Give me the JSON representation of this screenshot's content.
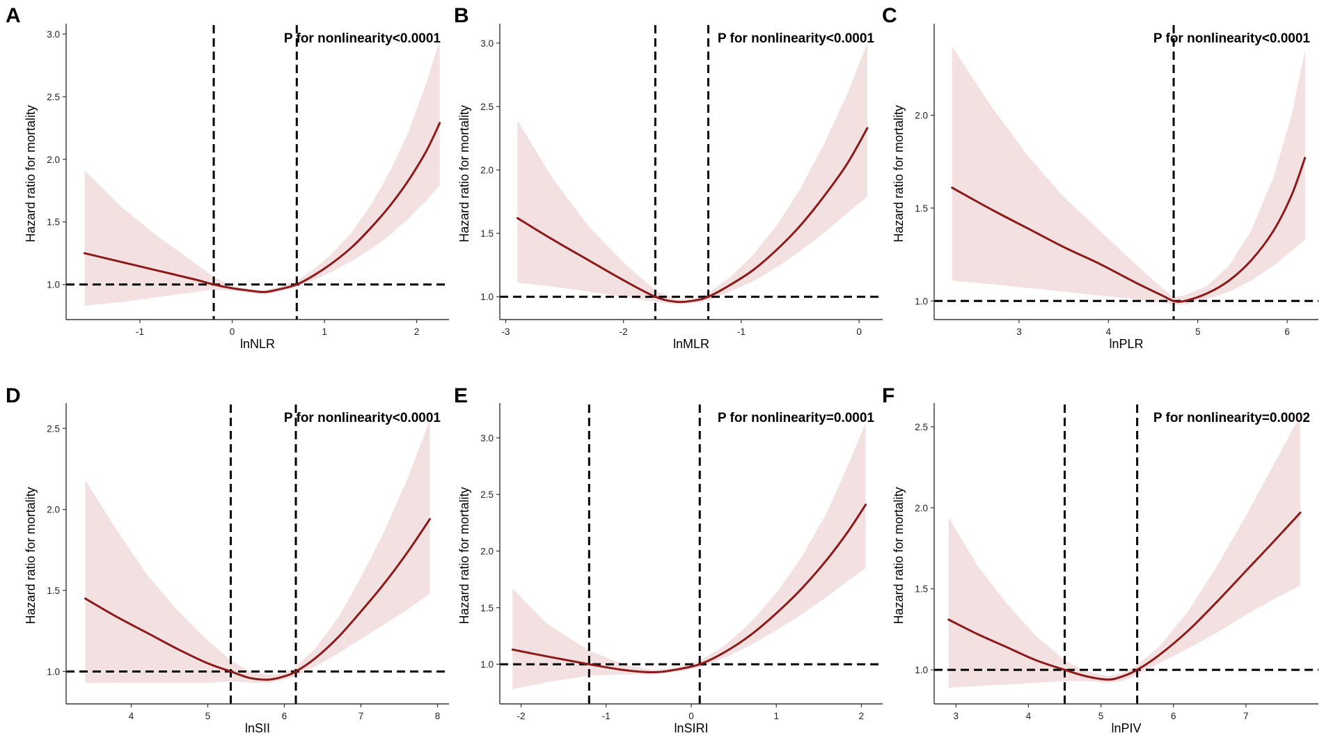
{
  "colors": {
    "line": "#8b1a1a",
    "band": "#f3e0e1",
    "reference": "#000000"
  },
  "chart_data": [
    {
      "panel": "A",
      "type": "line",
      "title": "",
      "xlabel": "lnNLR",
      "ylabel": "Hazard ratio for mortality",
      "annotation": "P for nonlinearity<0.0001",
      "xlim": [
        -1.8,
        2.35
      ],
      "ylim": [
        0.72,
        3.05
      ],
      "xticks": [
        -1,
        0,
        1,
        2
      ],
      "yticks": [
        1.0,
        1.5,
        2.0,
        2.5,
        3.0
      ],
      "hline": 1.0,
      "vlines": [
        -0.2,
        0.7
      ],
      "x": [
        -1.6,
        -1.2,
        -0.8,
        -0.4,
        -0.2,
        0.0,
        0.2,
        0.35,
        0.5,
        0.7,
        0.9,
        1.1,
        1.3,
        1.5,
        1.7,
        1.9,
        2.1,
        2.25
      ],
      "y": [
        1.25,
        1.18,
        1.11,
        1.04,
        1.0,
        0.97,
        0.95,
        0.94,
        0.96,
        1.0,
        1.08,
        1.18,
        1.3,
        1.45,
        1.62,
        1.82,
        2.06,
        2.29
      ],
      "lower": [
        0.83,
        0.86,
        0.9,
        0.94,
        0.96,
        0.95,
        0.93,
        0.92,
        0.94,
        0.98,
        1.04,
        1.11,
        1.19,
        1.28,
        1.39,
        1.52,
        1.67,
        1.79
      ],
      "upper": [
        1.91,
        1.62,
        1.38,
        1.17,
        1.06,
        0.99,
        0.96,
        0.95,
        0.98,
        1.03,
        1.13,
        1.26,
        1.42,
        1.63,
        1.89,
        2.2,
        2.6,
        2.95
      ]
    },
    {
      "panel": "B",
      "type": "line",
      "title": "",
      "xlabel": "lnMLR",
      "ylabel": "Hazard ratio for mortality",
      "annotation": "P for nonlinearity<0.0001",
      "xlim": [
        -3.05,
        0.2
      ],
      "ylim": [
        0.82,
        3.12
      ],
      "xticks": [
        -3,
        -2,
        -1,
        0
      ],
      "yticks": [
        1.0,
        1.5,
        2.0,
        2.5,
        3.0
      ],
      "hline": 1.0,
      "vlines": [
        -1.73,
        -1.28
      ],
      "x": [
        -2.9,
        -2.6,
        -2.3,
        -2.0,
        -1.73,
        -1.55,
        -1.4,
        -1.28,
        -1.1,
        -0.9,
        -0.7,
        -0.5,
        -0.3,
        -0.1,
        0.07
      ],
      "y": [
        1.62,
        1.45,
        1.29,
        1.13,
        1.0,
        0.96,
        0.97,
        1.0,
        1.09,
        1.21,
        1.37,
        1.56,
        1.79,
        2.05,
        2.33
      ],
      "lower": [
        1.11,
        1.08,
        1.04,
        1.0,
        0.96,
        0.94,
        0.95,
        0.97,
        1.04,
        1.12,
        1.23,
        1.36,
        1.5,
        1.66,
        1.79
      ],
      "upper": [
        2.39,
        1.93,
        1.56,
        1.27,
        1.05,
        0.98,
        0.99,
        1.03,
        1.15,
        1.33,
        1.56,
        1.85,
        2.2,
        2.6,
        3.0
      ]
    },
    {
      "panel": "C",
      "type": "line",
      "title": "",
      "xlabel": "lnPLR",
      "ylabel": "Hazard ratio for mortality",
      "annotation": "P for nonlinearity<0.0001",
      "xlim": [
        2.05,
        6.35
      ],
      "ylim": [
        0.9,
        2.47
      ],
      "xticks": [
        3,
        4,
        5,
        6
      ],
      "yticks": [
        1.0,
        1.5,
        2.0
      ],
      "hline": 1.0,
      "vlines": [
        4.73
      ],
      "x": [
        2.25,
        2.7,
        3.1,
        3.5,
        3.9,
        4.3,
        4.6,
        4.73,
        4.85,
        5.1,
        5.35,
        5.6,
        5.85,
        6.05,
        6.2
      ],
      "y": [
        1.61,
        1.49,
        1.39,
        1.29,
        1.2,
        1.1,
        1.03,
        1.0,
        1.0,
        1.04,
        1.11,
        1.22,
        1.38,
        1.57,
        1.77
      ],
      "lower": [
        1.11,
        1.09,
        1.07,
        1.05,
        1.03,
        1.01,
        0.99,
        0.98,
        0.98,
        1.01,
        1.05,
        1.11,
        1.19,
        1.27,
        1.33
      ],
      "upper": [
        2.37,
        2.04,
        1.78,
        1.56,
        1.38,
        1.2,
        1.07,
        1.02,
        1.03,
        1.08,
        1.19,
        1.38,
        1.67,
        2.0,
        2.35
      ]
    },
    {
      "panel": "D",
      "type": "line",
      "title": "",
      "xlabel": "lnSII",
      "ylabel": "Hazard ratio for mortality",
      "annotation": "P for nonlinearity<0.0001",
      "xlim": [
        3.15,
        8.15
      ],
      "ylim": [
        0.8,
        2.63
      ],
      "xticks": [
        4,
        5,
        6,
        7,
        8
      ],
      "yticks": [
        1.0,
        1.5,
        2.0,
        2.5
      ],
      "hline": 1.0,
      "vlines": [
        5.3,
        6.15
      ],
      "x": [
        3.4,
        3.8,
        4.2,
        4.6,
        5.0,
        5.3,
        5.55,
        5.8,
        6.0,
        6.15,
        6.4,
        6.7,
        7.0,
        7.3,
        7.6,
        7.9
      ],
      "y": [
        1.45,
        1.34,
        1.24,
        1.14,
        1.05,
        1.0,
        0.96,
        0.95,
        0.97,
        1.0,
        1.08,
        1.21,
        1.37,
        1.54,
        1.73,
        1.94
      ],
      "lower": [
        0.93,
        0.93,
        0.93,
        0.93,
        0.93,
        0.94,
        0.93,
        0.93,
        0.95,
        0.97,
        1.03,
        1.11,
        1.2,
        1.29,
        1.38,
        1.48
      ],
      "upper": [
        2.18,
        1.88,
        1.6,
        1.38,
        1.19,
        1.07,
        1.0,
        0.98,
        0.99,
        1.03,
        1.14,
        1.33,
        1.58,
        1.86,
        2.18,
        2.55
      ]
    },
    {
      "panel": "E",
      "type": "line",
      "title": "",
      "xlabel": "lnSIRI",
      "ylabel": "Hazard ratio for mortality",
      "annotation": "P for nonlinearity=0.0001",
      "xlim": [
        -2.25,
        2.25
      ],
      "ylim": [
        0.65,
        3.27
      ],
      "xticks": [
        -2,
        -1,
        0,
        1,
        2
      ],
      "yticks": [
        1.0,
        1.5,
        2.0,
        2.5,
        3.0
      ],
      "hline": 1.0,
      "vlines": [
        -1.2,
        0.1
      ],
      "x": [
        -2.1,
        -1.7,
        -1.2,
        -0.8,
        -0.45,
        -0.2,
        0.1,
        0.4,
        0.7,
        1.0,
        1.3,
        1.6,
        1.85,
        2.05
      ],
      "y": [
        1.13,
        1.07,
        1.0,
        0.95,
        0.93,
        0.95,
        1.0,
        1.11,
        1.26,
        1.45,
        1.67,
        1.93,
        2.18,
        2.41
      ],
      "lower": [
        0.78,
        0.84,
        0.9,
        0.91,
        0.91,
        0.93,
        0.97,
        1.06,
        1.17,
        1.3,
        1.44,
        1.6,
        1.74,
        1.85
      ],
      "upper": [
        1.67,
        1.36,
        1.12,
        1.0,
        0.95,
        0.97,
        1.03,
        1.17,
        1.37,
        1.63,
        1.95,
        2.35,
        2.77,
        3.13
      ]
    },
    {
      "panel": "F",
      "type": "line",
      "title": "",
      "xlabel": "lnPIV",
      "ylabel": "Hazard ratio for mortality",
      "annotation": "P for nonlinearity=0.0002",
      "xlim": [
        2.7,
        8.0
      ],
      "ylim": [
        0.79,
        2.62
      ],
      "xticks": [
        3,
        4,
        5,
        6,
        7
      ],
      "yticks": [
        1.0,
        1.5,
        2.0,
        2.5
      ],
      "hline": 1.0,
      "vlines": [
        4.5,
        5.5
      ],
      "x": [
        2.9,
        3.3,
        3.7,
        4.1,
        4.5,
        4.8,
        5.1,
        5.3,
        5.5,
        5.8,
        6.2,
        6.6,
        7.0,
        7.4,
        7.75
      ],
      "y": [
        1.31,
        1.22,
        1.14,
        1.06,
        1.0,
        0.96,
        0.94,
        0.96,
        1.0,
        1.09,
        1.24,
        1.42,
        1.61,
        1.8,
        1.97
      ],
      "lower": [
        0.89,
        0.9,
        0.91,
        0.92,
        0.93,
        0.93,
        0.92,
        0.93,
        0.97,
        1.04,
        1.13,
        1.23,
        1.34,
        1.44,
        1.52
      ],
      "upper": [
        1.94,
        1.64,
        1.41,
        1.21,
        1.06,
        0.99,
        0.96,
        0.98,
        1.03,
        1.14,
        1.36,
        1.64,
        1.95,
        2.28,
        2.57
      ]
    }
  ]
}
